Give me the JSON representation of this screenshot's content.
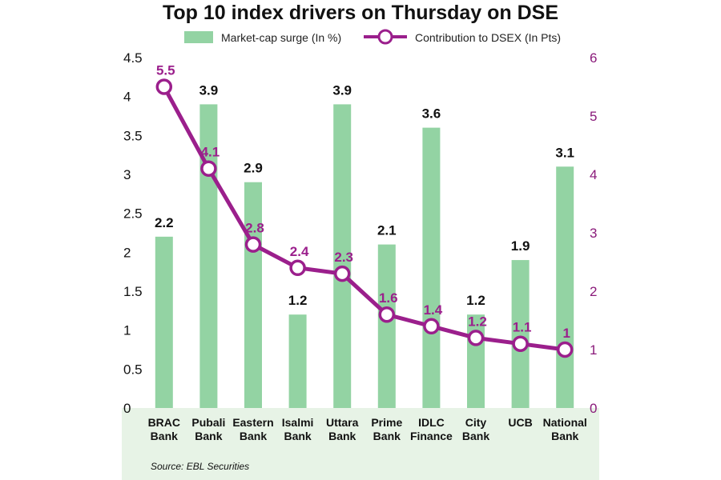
{
  "chart_data": {
    "type": "bar",
    "title": "Top 10 index drivers on Thursday on DSE",
    "categories": [
      [
        "BRAC",
        "Bank"
      ],
      [
        "Pubali",
        "Bank"
      ],
      [
        "Eastern",
        "Bank"
      ],
      [
        "Isalmi",
        "Bank"
      ],
      [
        "Uttara",
        "Bank"
      ],
      [
        "Prime",
        "Bank"
      ],
      [
        "IDLC",
        "Finance"
      ],
      [
        "City",
        "Bank"
      ],
      [
        "UCB"
      ],
      [
        "National",
        "Bank"
      ]
    ],
    "series": [
      {
        "name": "Market-cap surge (In %)",
        "type": "bar",
        "axis": "left",
        "values": [
          2.2,
          3.9,
          2.9,
          1.2,
          3.9,
          2.1,
          3.6,
          1.2,
          1.9,
          3.1
        ]
      },
      {
        "name": "Contribution to DSEX (In Pts)",
        "type": "line",
        "axis": "right",
        "values": [
          5.5,
          4.1,
          2.8,
          2.4,
          2.3,
          1.6,
          1.4,
          1.2,
          1.1,
          1
        ]
      }
    ],
    "y_left": {
      "ticks": [
        "0",
        "0.5",
        "1",
        "1.5",
        "2",
        "2.5",
        "3",
        "3.5",
        "4",
        "4.5"
      ],
      "range": [
        0,
        4.5
      ]
    },
    "y_right": {
      "ticks": [
        "0",
        "1",
        "2",
        "3",
        "4",
        "5",
        "6"
      ],
      "range": [
        0,
        6
      ]
    },
    "source": "Source: EBL Securities",
    "colors": {
      "bar": "#93d3a3",
      "line": "#9b1f8c",
      "bottom_band": "#e7f3e6"
    },
    "grid": false,
    "legend": "top"
  }
}
